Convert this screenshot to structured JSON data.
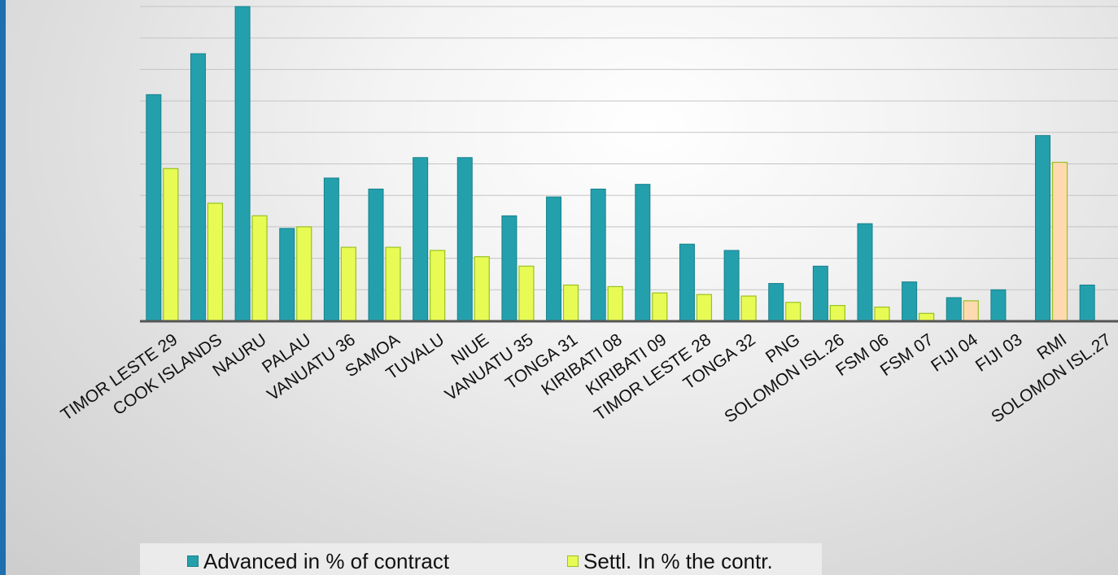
{
  "colors": {
    "advanced": "#24a0ad",
    "advanced_edge": "#15808c",
    "settled": "#e8fb55",
    "settled_edge": "#99c21f",
    "settled_highlight": "#ffd9b0",
    "grid": "#c4c4c4",
    "axis": "#555555"
  },
  "legend": {
    "position": "bottom",
    "items": [
      {
        "label": "Advanced in % of contract",
        "color": "#24a0ad"
      },
      {
        "label": "Settl. In % the contr.",
        "color": "#e8fb55"
      }
    ]
  },
  "chart_data": {
    "type": "bar",
    "grid": true,
    "ylim": [
      0,
      100
    ],
    "categories": [
      "TIMOR LESTE 29",
      "COOK ISLANDS",
      "NAURU",
      "PALAU",
      "VANUATU 36",
      "SAMOA",
      "TUVALU",
      "NIUE",
      "VANUATU  35",
      "TONGA 31",
      "KIRIBATI 08",
      "KIRIBATI 09",
      "TIMOR LESTE 28",
      "TONGA 32",
      "PNG",
      "SOLOMON ISL.26",
      "FSM 06",
      "FSM 07",
      "FIJI 04",
      "FIJI 03",
      "RMI",
      "SOLOMON ISL.27"
    ],
    "series": [
      {
        "name": "Advanced in % of contract",
        "values": [
          72,
          85,
          100,
          29.5,
          45.5,
          42,
          52,
          52,
          33.5,
          39.5,
          42,
          43.5,
          24.5,
          22.5,
          12,
          17.5,
          31,
          12.5,
          7.5,
          10,
          59,
          11.5
        ]
      },
      {
        "name": "Settl. In % the contr.",
        "values": [
          48.5,
          37.5,
          33.5,
          30,
          23.5,
          23.5,
          22.5,
          20.5,
          17.5,
          11.5,
          11,
          9,
          8.5,
          8,
          6,
          5,
          4.5,
          2.5,
          6.5,
          null,
          50.5,
          null
        ],
        "highlight": [
          "FIJI 04",
          "RMI"
        ]
      }
    ]
  }
}
